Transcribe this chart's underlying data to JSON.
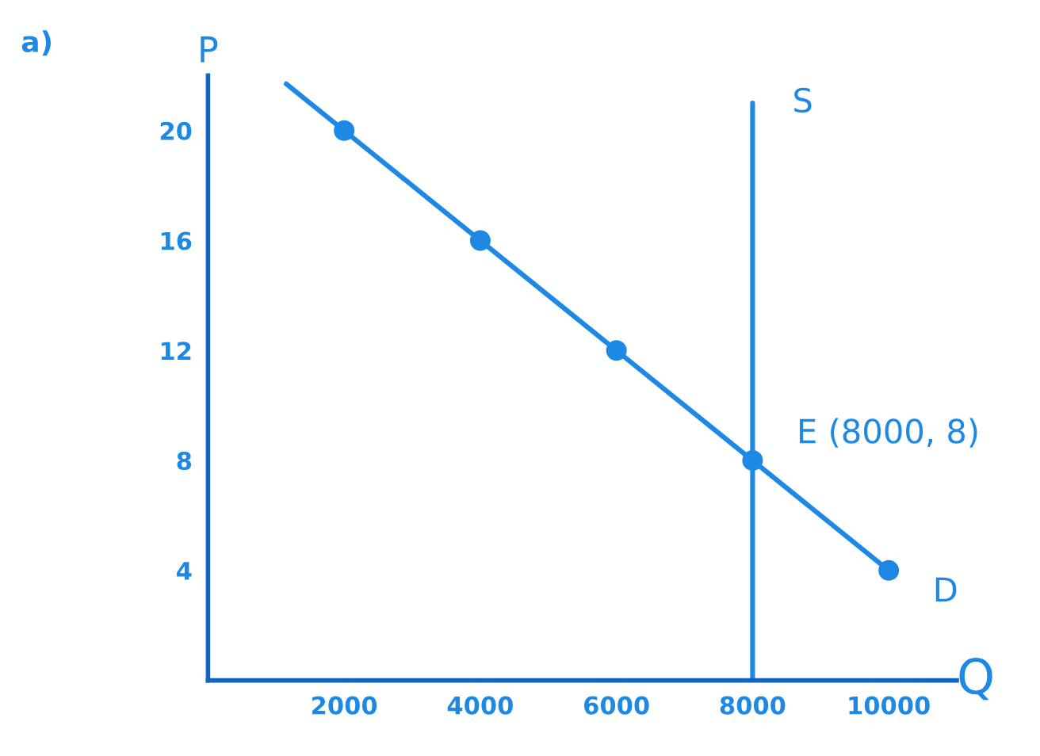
{
  "chart_data": {
    "type": "line",
    "title": "a)",
    "xlabel": "Q",
    "ylabel": "P",
    "xlim": [
      0,
      11000
    ],
    "ylim": [
      0,
      22
    ],
    "xticks": [
      2000,
      4000,
      6000,
      8000,
      10000
    ],
    "yticks": [
      4,
      8,
      12,
      16,
      20
    ],
    "grid": false,
    "legend": false,
    "series": [
      {
        "name": "D",
        "color": "#1e88e5",
        "marker": "none",
        "x": [
          1150,
          10000
        ],
        "values": [
          21.7,
          4
        ]
      },
      {
        "type": "scatter",
        "color": "#1e88e5",
        "marker": "circle",
        "x": [
          2000,
          4000,
          6000,
          8000,
          10000
        ],
        "values": [
          20,
          16,
          12,
          8,
          4
        ]
      },
      {
        "name": "S",
        "type": "line",
        "color": "#1e88e5",
        "marker": "none",
        "x": [
          8000,
          8000
        ],
        "values": [
          0,
          21
        ]
      }
    ],
    "annotations": [
      {
        "text": "E (8000, 8)",
        "x": 8000,
        "y": 8
      }
    ]
  }
}
